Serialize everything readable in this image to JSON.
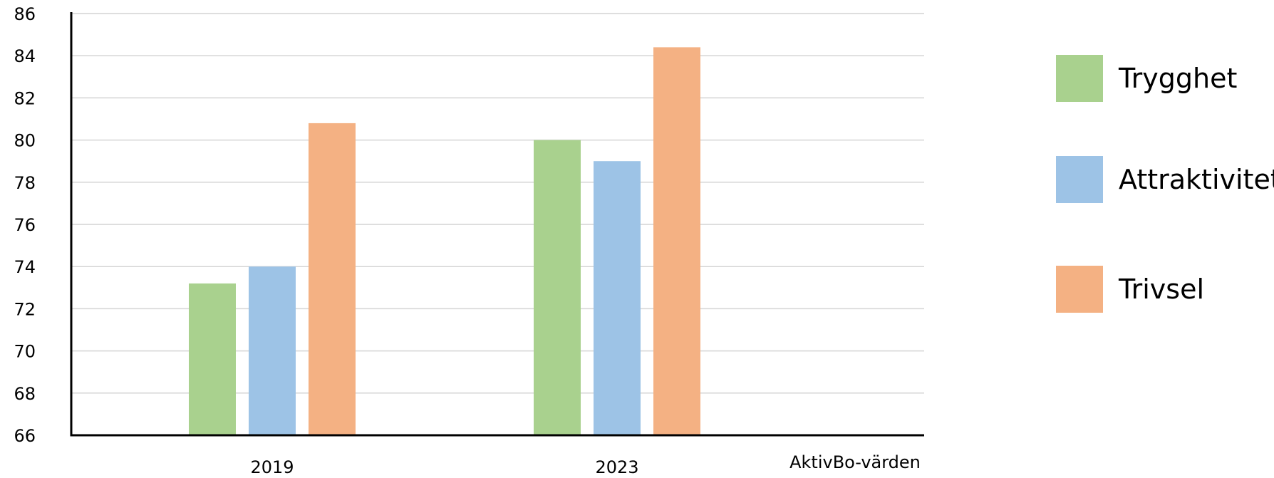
{
  "chart_data": {
    "type": "bar",
    "title": "",
    "xlabel": "AktivBo-värden",
    "ylabel": "",
    "categories": [
      "2019",
      "2023"
    ],
    "series": [
      {
        "name": "Trygghet",
        "values": [
          73.2,
          80.0
        ],
        "color": "#a9d18e"
      },
      {
        "name": "Attraktivitet",
        "values": [
          74.0,
          79.0
        ],
        "color": "#9dc3e6"
      },
      {
        "name": "Trivsel",
        "values": [
          80.8,
          84.4
        ],
        "color": "#f4b183"
      }
    ],
    "ylim": [
      66,
      86
    ],
    "yticks": [
      66,
      68,
      70,
      72,
      74,
      76,
      78,
      80,
      82,
      84,
      86
    ],
    "grid": true,
    "legend_position": "right"
  }
}
